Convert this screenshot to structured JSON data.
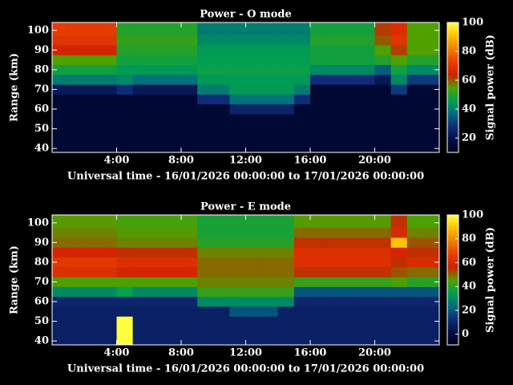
{
  "chart_data": [
    {
      "type": "heatmap",
      "title": "Power - O mode",
      "xlabel": "Universal time - 16/01/2026 00:00:00 to 17/01/2026 00:00:00",
      "ylabel": "Range (km)",
      "colorbar_label": "Signal power (dB)",
      "xlim": [
        0,
        24
      ],
      "ylim": [
        38,
        104
      ],
      "xticks": [
        {
          "value": 4,
          "label": "4:00"
        },
        {
          "value": 8,
          "label": "8:00"
        },
        {
          "value": 12,
          "label": "12:00"
        },
        {
          "value": 16,
          "label": "16:00"
        },
        {
          "value": 20,
          "label": "20:00"
        }
      ],
      "yticks": [
        40,
        50,
        60,
        70,
        80,
        90,
        100
      ],
      "clim": [
        10,
        100
      ],
      "cticks": [
        20,
        40,
        60,
        80,
        100
      ],
      "colormap": [
        "#000018",
        "#00104a",
        "#102c78",
        "#006c80",
        "#00a050",
        "#50a000",
        "#d02000",
        "#e84000",
        "#f08000",
        "#ffc000",
        "#ffff40"
      ],
      "x_bins": [
        0,
        1,
        2,
        3,
        4,
        5,
        6,
        7,
        8,
        9,
        10,
        11,
        12,
        13,
        14,
        15,
        16,
        17,
        18,
        19,
        20,
        21,
        22,
        23,
        24
      ],
      "y_bins": [
        38,
        42.5,
        47.5,
        52.5,
        57.5,
        62.5,
        67.5,
        72.5,
        77.5,
        82.5,
        87.5,
        92.5,
        97.5,
        104
      ],
      "z": [
        [
          15,
          15,
          15,
          15,
          15,
          15,
          15,
          15,
          15,
          15,
          15,
          15,
          15,
          15,
          15,
          15,
          15,
          15,
          15,
          15,
          15,
          15,
          15,
          15
        ],
        [
          15,
          15,
          15,
          15,
          15,
          15,
          15,
          15,
          15,
          15,
          15,
          15,
          15,
          15,
          15,
          15,
          15,
          15,
          15,
          15,
          15,
          15,
          15,
          15
        ],
        [
          15,
          15,
          15,
          15,
          15,
          15,
          15,
          15,
          15,
          15,
          15,
          15,
          15,
          15,
          15,
          15,
          15,
          15,
          15,
          15,
          15,
          15,
          15,
          15
        ],
        [
          15,
          15,
          15,
          15,
          15,
          15,
          15,
          15,
          15,
          15,
          15,
          15,
          15,
          15,
          15,
          15,
          15,
          15,
          15,
          15,
          15,
          15,
          15,
          15
        ],
        [
          15,
          15,
          15,
          15,
          15,
          15,
          15,
          15,
          15,
          15,
          15,
          25,
          25,
          25,
          25,
          15,
          15,
          15,
          15,
          15,
          15,
          15,
          15,
          15
        ],
        [
          15,
          15,
          15,
          15,
          15,
          15,
          15,
          15,
          15,
          28,
          28,
          38,
          38,
          38,
          38,
          28,
          15,
          15,
          15,
          15,
          15,
          15,
          15,
          15
        ],
        [
          22,
          22,
          22,
          22,
          28,
          22,
          22,
          22,
          22,
          40,
          40,
          45,
          45,
          45,
          45,
          40,
          15,
          15,
          15,
          15,
          15,
          30,
          15,
          15
        ],
        [
          40,
          40,
          40,
          40,
          42,
          38,
          38,
          38,
          38,
          45,
          45,
          45,
          45,
          45,
          45,
          45,
          28,
          28,
          28,
          28,
          22,
          42,
          30,
          30
        ],
        [
          48,
          48,
          48,
          48,
          45,
          45,
          45,
          45,
          45,
          47,
          47,
          47,
          47,
          47,
          47,
          47,
          42,
          42,
          42,
          42,
          35,
          48,
          42,
          42
        ],
        [
          55,
          55,
          55,
          55,
          48,
          48,
          48,
          48,
          48,
          46,
          46,
          46,
          46,
          46,
          46,
          46,
          48,
          48,
          48,
          48,
          50,
          55,
          50,
          50
        ],
        [
          65,
          65,
          65,
          65,
          50,
          50,
          50,
          50,
          50,
          45,
          45,
          45,
          45,
          45,
          45,
          45,
          48,
          48,
          48,
          48,
          55,
          62,
          55,
          55
        ],
        [
          70,
          70,
          70,
          70,
          52,
          52,
          52,
          52,
          52,
          42,
          42,
          42,
          42,
          42,
          42,
          42,
          50,
          50,
          50,
          50,
          60,
          70,
          55,
          55
        ],
        [
          72,
          72,
          72,
          72,
          50,
          50,
          50,
          50,
          50,
          40,
          40,
          40,
          40,
          40,
          40,
          40,
          48,
          48,
          48,
          48,
          62,
          68,
          55,
          55
        ]
      ]
    },
    {
      "type": "heatmap",
      "title": "Power - E mode",
      "xlabel": "Universal time - 16/01/2026 00:00:00 to 17/01/2026 00:00:00",
      "ylabel": "Range (km)",
      "colorbar_label": "Signal power (dB)",
      "xlim": [
        0,
        24
      ],
      "ylim": [
        38,
        104
      ],
      "xticks": [
        {
          "value": 4,
          "label": "4:00"
        },
        {
          "value": 8,
          "label": "8:00"
        },
        {
          "value": 12,
          "label": "12:00"
        },
        {
          "value": 16,
          "label": "16:00"
        },
        {
          "value": 20,
          "label": "20:00"
        }
      ],
      "yticks": [
        40,
        50,
        60,
        70,
        80,
        90,
        100
      ],
      "clim": [
        -9,
        100
      ],
      "cticks": [
        0,
        20,
        40,
        60,
        80,
        100
      ],
      "colormap": [
        "#000018",
        "#00104a",
        "#102c78",
        "#006c80",
        "#00a050",
        "#50a000",
        "#d02000",
        "#e84000",
        "#f08000",
        "#ffc000",
        "#ffff40"
      ],
      "x_bins": [
        0,
        1,
        2,
        3,
        4,
        5,
        6,
        7,
        8,
        9,
        10,
        11,
        12,
        13,
        14,
        15,
        16,
        17,
        18,
        19,
        20,
        21,
        22,
        23,
        24
      ],
      "y_bins": [
        38,
        42.5,
        47.5,
        52.5,
        57.5,
        62.5,
        67.5,
        72.5,
        77.5,
        82.5,
        87.5,
        92.5,
        97.5,
        104
      ],
      "z": [
        [
          8,
          8,
          8,
          8,
          100,
          8,
          8,
          8,
          8,
          8,
          8,
          8,
          8,
          8,
          8,
          8,
          8,
          8,
          8,
          8,
          8,
          8,
          8,
          8
        ],
        [
          8,
          8,
          8,
          8,
          100,
          8,
          8,
          8,
          8,
          8,
          8,
          8,
          8,
          8,
          8,
          8,
          8,
          8,
          8,
          8,
          8,
          8,
          8,
          8
        ],
        [
          8,
          8,
          8,
          8,
          100,
          8,
          8,
          8,
          8,
          8,
          8,
          8,
          8,
          8,
          8,
          8,
          8,
          8,
          8,
          8,
          8,
          8,
          8,
          8
        ],
        [
          8,
          8,
          8,
          8,
          8,
          8,
          8,
          8,
          8,
          8,
          8,
          20,
          20,
          20,
          8,
          8,
          8,
          8,
          8,
          8,
          8,
          8,
          8,
          8
        ],
        [
          10,
          10,
          10,
          10,
          10,
          10,
          10,
          10,
          10,
          30,
          30,
          30,
          30,
          30,
          30,
          10,
          10,
          10,
          10,
          10,
          10,
          10,
          10,
          10
        ],
        [
          30,
          30,
          30,
          30,
          35,
          30,
          30,
          30,
          30,
          42,
          42,
          42,
          42,
          42,
          42,
          20,
          20,
          20,
          20,
          20,
          20,
          20,
          20,
          20
        ],
        [
          45,
          45,
          45,
          45,
          45,
          45,
          45,
          45,
          45,
          48,
          48,
          48,
          48,
          48,
          48,
          42,
          42,
          42,
          42,
          42,
          42,
          45,
          40,
          40
        ],
        [
          62,
          62,
          62,
          62,
          58,
          58,
          58,
          58,
          58,
          50,
          50,
          50,
          50,
          50,
          50,
          55,
          55,
          55,
          55,
          55,
          55,
          52,
          50,
          50
        ],
        [
          65,
          65,
          65,
          65,
          62,
          62,
          62,
          62,
          62,
          50,
          50,
          50,
          50,
          50,
          50,
          62,
          62,
          62,
          62,
          62,
          62,
          55,
          60,
          60
        ],
        [
          58,
          58,
          58,
          58,
          55,
          55,
          55,
          55,
          55,
          48,
          48,
          48,
          48,
          48,
          48,
          62,
          62,
          62,
          62,
          62,
          62,
          58,
          55,
          55
        ],
        [
          50,
          50,
          50,
          50,
          48,
          48,
          48,
          48,
          48,
          40,
          40,
          40,
          40,
          40,
          40,
          55,
          55,
          55,
          55,
          55,
          55,
          90,
          52,
          52
        ],
        [
          48,
          48,
          48,
          48,
          46,
          46,
          46,
          46,
          46,
          38,
          38,
          38,
          38,
          38,
          38,
          50,
          50,
          50,
          50,
          50,
          50,
          60,
          48,
          48
        ],
        [
          46,
          46,
          46,
          46,
          44,
          44,
          44,
          44,
          44,
          38,
          38,
          38,
          38,
          38,
          38,
          46,
          46,
          46,
          46,
          46,
          46,
          55,
          45,
          45
        ]
      ]
    }
  ]
}
